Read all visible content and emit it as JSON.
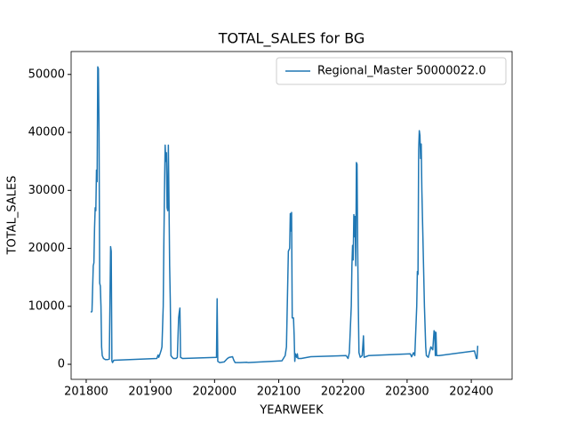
{
  "chart_data": {
    "type": "line",
    "title": "TOTAL_SALES for BG",
    "x_label": "YEARWEEK",
    "y_label": "TOTAL_SALES",
    "x": [
      201807,
      201809,
      201811,
      201812,
      201813,
      201814,
      201815,
      201816,
      201817,
      201818,
      201819,
      201820,
      201821,
      201822,
      201823,
      201824,
      201825,
      201827,
      201830,
      201833,
      201836,
      201838,
      201839,
      201840,
      201841,
      201843,
      201910,
      201912,
      201913,
      201915,
      201917,
      201918,
      201920,
      201921,
      201922,
      201923,
      201924,
      201925,
      201926,
      201927,
      201928,
      201929,
      201930,
      201931,
      201932,
      201934,
      201936,
      201940,
      201942,
      201944,
      201945,
      201946,
      201947,
      201950,
      202003,
      202004,
      202005,
      202008,
      202015,
      202020,
      202023,
      202028,
      202030,
      202032,
      202040,
      202050,
      202052,
      202105,
      202110,
      202112,
      202115,
      202117,
      202118,
      202119,
      202120,
      202121,
      202123,
      202124,
      202125,
      202126,
      202128,
      202129,
      202130,
      202135,
      202150,
      202205,
      202208,
      202210,
      202213,
      202214,
      202215,
      202216,
      202217,
      202218,
      202219,
      202220,
      202221,
      202222,
      202223,
      202224,
      202225,
      202227,
      202230,
      202232,
      202233,
      202240,
      202305,
      202307,
      202310,
      202312,
      202315,
      202316,
      202317,
      202318,
      202319,
      202320,
      202321,
      202322,
      202323,
      202325,
      202327,
      202329,
      202330,
      202333,
      202337,
      202340,
      202342,
      202343,
      202344,
      202345,
      202346,
      202350,
      202405,
      202408,
      202409,
      202410
    ],
    "series": [
      {
        "name": "Regional_Master 50000022.0",
        "color": "#1f77b4",
        "values": [
          9000,
          9100,
          17000,
          17500,
          23500,
          27000,
          26500,
          33500,
          31500,
          51300,
          51000,
          40000,
          14000,
          13500,
          10000,
          3000,
          1500,
          1000,
          800,
          800,
          900,
          20300,
          19500,
          600,
          300,
          700,
          1000,
          1600,
          1200,
          1800,
          2500,
          3000,
          10000,
          21000,
          30000,
          37800,
          35000,
          36500,
          27000,
          26500,
          37800,
          28000,
          17000,
          11000,
          1500,
          1200,
          1000,
          1000,
          1200,
          8000,
          9000,
          9700,
          1200,
          1000,
          1200,
          11300,
          500,
          300,
          400,
          1000,
          1200,
          1300,
          700,
          300,
          300,
          350,
          300,
          600,
          1500,
          3000,
          19500,
          20000,
          26000,
          23000,
          26200,
          8000,
          8000,
          5000,
          500,
          1800,
          1200,
          1800,
          1000,
          1000,
          1300,
          1500,
          1000,
          2000,
          10000,
          17000,
          20500,
          18000,
          25800,
          22000,
          25500,
          17000,
          34800,
          34500,
          20000,
          10000,
          2000,
          1200,
          1500,
          4900,
          1200,
          1500,
          1800,
          1300,
          2000,
          1500,
          10000,
          16000,
          15500,
          37000,
          40300,
          39500,
          35500,
          38000,
          30000,
          20000,
          10000,
          3000,
          1500,
          1200,
          3000,
          2500,
          5800,
          5600,
          1500,
          5500,
          1500,
          1500,
          2300,
          1000,
          1000,
          3200
        ]
      }
    ],
    "xlim": [
      201776.5,
      202463.6
    ],
    "ylim": [
      -2600,
      53950
    ],
    "xticks": [
      201800,
      201900,
      202000,
      202100,
      202200,
      202300,
      202400
    ],
    "yticks": [
      0,
      10000,
      20000,
      30000,
      40000,
      50000
    ],
    "legend": "upper right"
  }
}
